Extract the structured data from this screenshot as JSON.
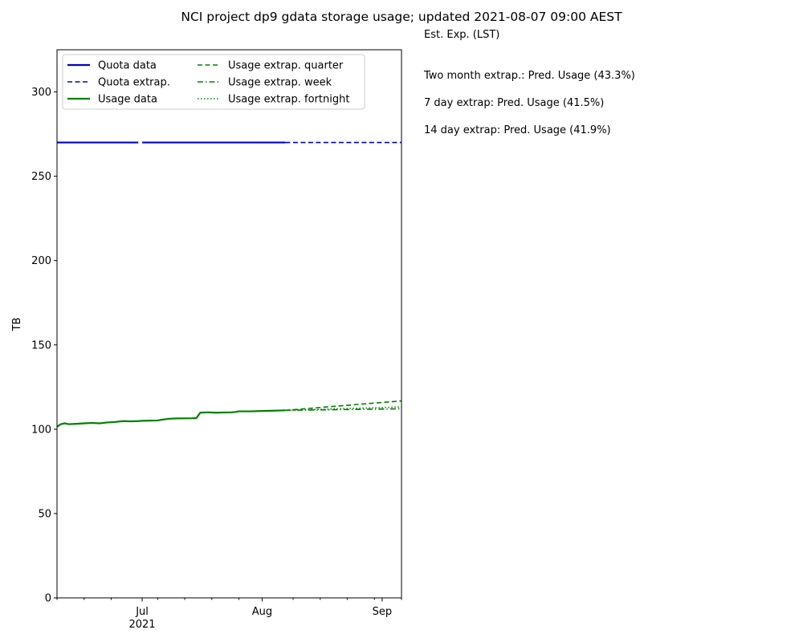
{
  "page": {
    "title": "NCI project dp9 gdata storage usage; updated 2021-08-07 09:00 AEST",
    "side_header": "Est. Exp. (LST)",
    "side_lines": [
      "Two month extrap.: Pred. Usage (43.3%)",
      "7 day extrap: Pred. Usage (41.5%)",
      "14 day extrap: Pred. Usage (41.9%)"
    ]
  },
  "colors": {
    "quota": "#0000cc",
    "usage": "#008000"
  },
  "chart_data": {
    "type": "line",
    "title": "NCI project dp9 gdata storage usage; updated 2021-08-07 09:00 AEST",
    "xlabel": "",
    "ylabel": "TB",
    "xlim": [
      "2021-06-09",
      "2021-09-06"
    ],
    "ylim": [
      0,
      325
    ],
    "yticks": [
      0,
      50,
      100,
      150,
      200,
      250,
      300
    ],
    "xticks": [
      {
        "date": "2021-07-01",
        "label": "Jul",
        "sublabel": "2021"
      },
      {
        "date": "2021-08-01",
        "label": "Aug",
        "sublabel": ""
      },
      {
        "date": "2021-09-01",
        "label": "Sep",
        "sublabel": ""
      }
    ],
    "minor_xticks": [
      "2021-06-09",
      "2021-06-16",
      "2021-06-23",
      "2021-07-05",
      "2021-07-12",
      "2021-07-19",
      "2021-07-26",
      "2021-08-09",
      "2021-08-16",
      "2021-08-23",
      "2021-08-30",
      "2021-09-06"
    ],
    "grid": false,
    "legend_position": "top-left",
    "series": [
      {
        "name": "Quota data",
        "style": "solid",
        "width": 2.2,
        "color": "#0000cc",
        "points": [
          [
            "2021-06-09",
            270
          ],
          [
            "2021-06-30",
            270
          ],
          [
            "2021-07-01",
            270
          ],
          [
            "2021-08-07",
            270
          ]
        ],
        "gaps_after": [
          1
        ]
      },
      {
        "name": "Quota extrap.",
        "style": "dashed",
        "width": 1.6,
        "color": "#0000cc",
        "points": [
          [
            "2021-08-07",
            270
          ],
          [
            "2021-09-06",
            270
          ]
        ]
      },
      {
        "name": "Usage data",
        "style": "solid",
        "width": 2.2,
        "color": "#008000",
        "points": [
          [
            "2021-06-09",
            101.5
          ],
          [
            "2021-06-10",
            103
          ],
          [
            "2021-06-11",
            103.5
          ],
          [
            "2021-06-12",
            103
          ],
          [
            "2021-06-14",
            103.2
          ],
          [
            "2021-06-16",
            103.5
          ],
          [
            "2021-06-18",
            103.7
          ],
          [
            "2021-06-20",
            103.5
          ],
          [
            "2021-06-22",
            104
          ],
          [
            "2021-06-24",
            104.3
          ],
          [
            "2021-06-26",
            104.8
          ],
          [
            "2021-06-28",
            104.7
          ],
          [
            "2021-06-30",
            104.8
          ],
          [
            "2021-07-01",
            105
          ],
          [
            "2021-07-03",
            105.1
          ],
          [
            "2021-07-05",
            105.2
          ],
          [
            "2021-07-06",
            105.6
          ],
          [
            "2021-07-08",
            106.2
          ],
          [
            "2021-07-10",
            106.4
          ],
          [
            "2021-07-14",
            106.5
          ],
          [
            "2021-07-15",
            106.6
          ],
          [
            "2021-07-16",
            109.8
          ],
          [
            "2021-07-18",
            110
          ],
          [
            "2021-07-20",
            109.8
          ],
          [
            "2021-07-24",
            110
          ],
          [
            "2021-07-25",
            110.2
          ],
          [
            "2021-07-26",
            110.6
          ],
          [
            "2021-07-29",
            110.6
          ],
          [
            "2021-08-01",
            110.8
          ],
          [
            "2021-08-04",
            111
          ],
          [
            "2021-08-07",
            111.2
          ]
        ]
      },
      {
        "name": "Usage extrap. quarter",
        "style": "dashed",
        "width": 1.6,
        "color": "#008000",
        "points": [
          [
            "2021-08-07",
            111.2
          ],
          [
            "2021-09-06",
            116.8
          ]
        ]
      },
      {
        "name": "Usage extrap. week",
        "style": "dashdot",
        "width": 1.6,
        "color": "#008000",
        "points": [
          [
            "2021-08-07",
            111.2
          ],
          [
            "2021-09-06",
            112.1
          ]
        ]
      },
      {
        "name": "Usage extrap. fortnight",
        "style": "dotted",
        "width": 1.6,
        "color": "#008000",
        "points": [
          [
            "2021-08-07",
            111.2
          ],
          [
            "2021-09-06",
            113.2
          ]
        ]
      }
    ]
  }
}
